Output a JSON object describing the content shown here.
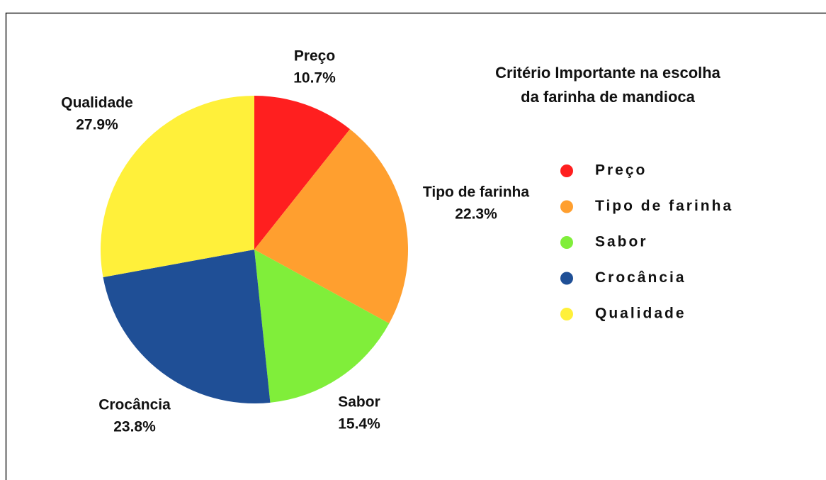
{
  "chart_data": {
    "type": "pie",
    "title": [
      "Critério Importante na escolha",
      "da farinha de mandioca"
    ],
    "categories": [
      "Preço",
      "Tipo de farinha",
      "Sabor",
      "Crocância",
      "Qualidade"
    ],
    "values": [
      10.7,
      22.3,
      15.4,
      23.8,
      27.9
    ],
    "value_labels": [
      "10.7%",
      "22.3%",
      "15.4%",
      "23.8%",
      "27.9%"
    ],
    "colors": [
      "#ff1f1f",
      "#ff9f2f",
      "#80ee3a",
      "#1f4f96",
      "#fff03a"
    ],
    "legend": "right"
  }
}
